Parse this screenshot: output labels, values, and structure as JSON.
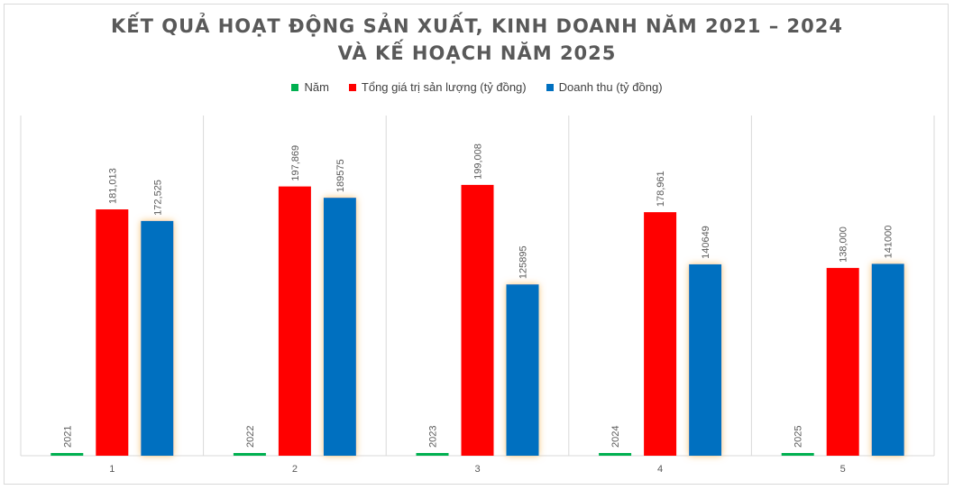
{
  "chart_data": {
    "type": "bar",
    "title_lines": [
      "KẾT QUẢ HOẠT ĐỘNG SẢN XUẤT, KINH DOANH NĂM 2021 – 2024",
      "VÀ KẾ HOẠCH NĂM 2025"
    ],
    "categories": [
      "1",
      "2",
      "3",
      "4",
      "5"
    ],
    "series": [
      {
        "name": "Năm",
        "color": "#00b050",
        "values": [
          2021,
          2022,
          2023,
          2024,
          2025
        ],
        "labels": [
          "2021",
          "2022",
          "2023",
          "2024",
          "2025"
        ]
      },
      {
        "name": "Tổng giá trị sản lượng (tỷ đồng)",
        "color": "#ff0000",
        "values": [
          181013,
          197869,
          199008,
          178961,
          138000
        ],
        "labels": [
          "181,013",
          "197,869",
          "199,008",
          "178,961",
          "138,000"
        ]
      },
      {
        "name": "Doanh thu (tỷ đồng)",
        "color": "#0070c0",
        "values": [
          172525,
          189575,
          125895,
          140649,
          141000
        ],
        "labels": [
          "172,525",
          "189575",
          "125895",
          "140649",
          "141000"
        ]
      }
    ],
    "ylim": [
      0,
      250000
    ],
    "grid": "vertical category separators",
    "legend_position": "top"
  }
}
